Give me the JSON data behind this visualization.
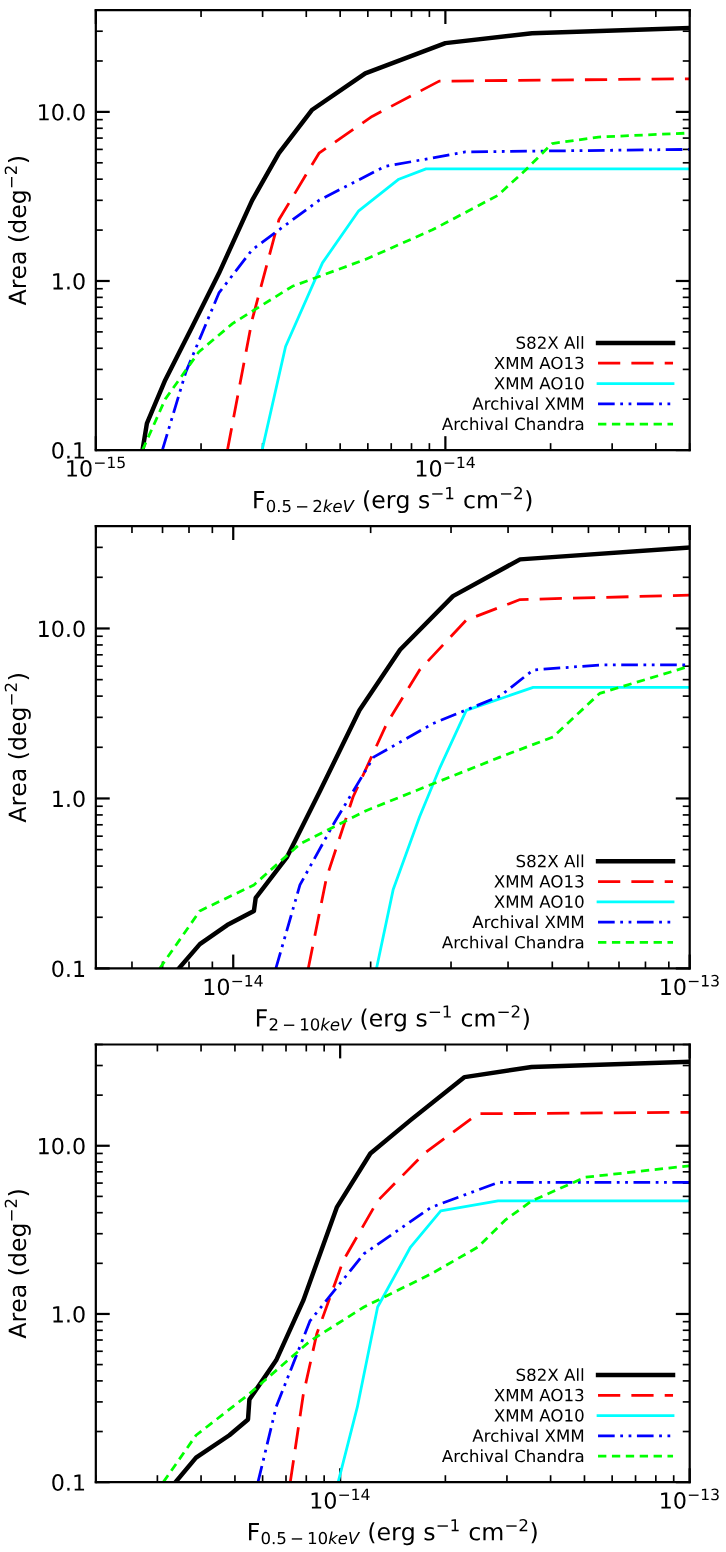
{
  "chart_data": [
    {
      "type": "line",
      "xlabel": "F$_{0.5−2keV}$ (erg s$^{−1}$ cm$^{−2}$)",
      "ylabel": "Area (deg$^{−2}$)",
      "log": "xy",
      "xlim": [
        1e-15,
        5e-14
      ],
      "ylim": [
        0.1,
        40
      ],
      "xticks": [
        {
          "value": 1e-15,
          "label": "10$^{−15}$"
        },
        {
          "value": 1e-14,
          "label": "10$^{−14}$"
        }
      ],
      "yticks": [
        {
          "value": 0.1,
          "label": "0.1"
        },
        {
          "value": 1,
          "label": "1.0"
        },
        {
          "value": 10,
          "label": "10.0"
        }
      ],
      "legend": "bottom right",
      "grid": false,
      "series": [
        {
          "name": "S82X All",
          "color": "#000000",
          "line_style": "solid",
          "x": [
            1.36e-15,
            1.4e-15,
            1.58e-15,
            1.89e-15,
            2.25e-15,
            2.8e-15,
            3.34e-15,
            4.16e-15,
            5.9e-15,
            1e-14,
            1.77e-14,
            5e-14
          ],
          "values": [
            0.1,
            0.144,
            0.26,
            0.54,
            1.11,
            3.0,
            5.7,
            10.3,
            16.9,
            25.5,
            29.2,
            31.3
          ]
        },
        {
          "name": "XMM AO13",
          "color": "#ff0000",
          "line_style": "dashed",
          "x": [
            2.38e-15,
            2.8e-15,
            3.34e-15,
            4.35e-15,
            6.17e-15,
            9.6e-15,
            5e-14
          ],
          "values": [
            0.1,
            0.59,
            2.3,
            5.7,
            9.4,
            15.2,
            15.7
          ]
        },
        {
          "name": "XMM AO10",
          "color": "#00ffff",
          "line_style": "solid",
          "x": [
            2.99e-15,
            3.49e-15,
            4.45e-15,
            5.65e-15,
            7.36e-15,
            8.8e-15,
            5e-14
          ],
          "values": [
            0.1,
            0.41,
            1.28,
            2.6,
            4.0,
            4.6,
            4.6
          ]
        },
        {
          "name": "Archival XMM",
          "color": "#0000ff",
          "line_style": "dashdot",
          "x": [
            1.55e-15,
            1.81e-15,
            2.25e-15,
            2.8e-15,
            4.35e-15,
            6.7e-15,
            1.14e-14,
            5e-14
          ],
          "values": [
            0.1,
            0.29,
            0.85,
            1.53,
            3.0,
            4.75,
            5.8,
            6.0
          ]
        },
        {
          "name": "Archival Chandra",
          "color": "#00ff00",
          "line_style": "dotted",
          "x": [
            1.36e-15,
            1.58e-15,
            1.97e-15,
            2.46e-15,
            3.65e-15,
            5.9e-15,
            9.15e-15,
            1.41e-14,
            1.69e-14,
            2.02e-14,
            2.74e-14,
            5e-14
          ],
          "values": [
            0.1,
            0.2,
            0.38,
            0.56,
            0.93,
            1.34,
            2.0,
            3.2,
            4.5,
            6.5,
            7.1,
            7.5
          ]
        }
      ]
    },
    {
      "type": "line",
      "xlabel": "F$_{2−10keV}$ (erg s$^{−1}$ cm$^{−2}$)",
      "ylabel": "Area (deg$^{−2}$)",
      "log": "xy",
      "xlim": [
        5e-15,
        1e-13
      ],
      "ylim": [
        0.1,
        40
      ],
      "xticks": [
        {
          "value": 1e-14,
          "label": "10$^{−14}$"
        },
        {
          "value": 1e-13,
          "label": "10$^{−13}$"
        }
      ],
      "yticks": [
        {
          "value": 0.1,
          "label": "0.1"
        },
        {
          "value": 1,
          "label": "1.0"
        },
        {
          "value": 10,
          "label": "10.0"
        }
      ],
      "legend": "bottom right",
      "grid": false,
      "series": [
        {
          "name": "S82X All",
          "color": "#000000",
          "line_style": "solid",
          "x": [
            7.6e-15,
            8.45e-15,
            9.7e-15,
            1.11e-14,
            1.12e-14,
            1.31e-14,
            1.55e-14,
            1.89e-14,
            2.32e-14,
            3.03e-14,
            4.25e-14,
            1e-13
          ],
          "values": [
            0.1,
            0.139,
            0.18,
            0.218,
            0.26,
            0.45,
            1.11,
            3.3,
            7.5,
            15.5,
            25.5,
            29.9
          ]
        },
        {
          "name": "XMM AO13",
          "color": "#ff0000",
          "line_style": "dashed",
          "x": [
            1.46e-14,
            1.6e-14,
            1.83e-14,
            2.17e-14,
            2.56e-14,
            3.24e-14,
            4.25e-14,
            1e-13
          ],
          "values": [
            0.1,
            0.34,
            1.02,
            2.76,
            5.7,
            11.2,
            14.8,
            15.7
          ]
        },
        {
          "name": "XMM AO10",
          "color": "#00ffff",
          "line_style": "solid",
          "x": [
            2.06e-14,
            2.24e-14,
            2.56e-14,
            2.84e-14,
            3.24e-14,
            4.54e-14,
            1e-13
          ],
          "values": [
            0.1,
            0.29,
            0.78,
            1.53,
            3.3,
            4.5,
            4.5
          ]
        },
        {
          "name": "Archival XMM",
          "color": "#0000ff",
          "line_style": "dashdot",
          "x": [
            1.24e-14,
            1.4e-14,
            1.66e-14,
            2.03e-14,
            2.74e-14,
            3.84e-14,
            4.54e-14,
            6.35e-14,
            1e-13
          ],
          "values": [
            0.1,
            0.31,
            0.71,
            1.75,
            2.76,
            4.0,
            5.7,
            6.1,
            6.1
          ]
        },
        {
          "name": "Archival Chandra",
          "color": "#00ff00",
          "line_style": "dotted",
          "x": [
            6.9e-15,
            8.45e-15,
            1.11e-14,
            1.4e-14,
            1.96e-14,
            2.74e-14,
            3.84e-14,
            5.02e-14,
            6.35e-14,
            1e-13
          ],
          "values": [
            0.1,
            0.218,
            0.31,
            0.54,
            0.85,
            1.22,
            1.75,
            2.3,
            4.15,
            6.0
          ]
        }
      ]
    },
    {
      "type": "line",
      "xlabel": "F$_{0.5−10keV}$ (erg s$^{−1}$ cm$^{−2}$)",
      "ylabel": "Area (deg$^{−2}$)",
      "log": "xy",
      "xlim": [
        2e-15,
        1e-13
      ],
      "ylim": [
        0.1,
        40
      ],
      "xticks": [
        {
          "value": 1e-14,
          "label": "10$^{−14}$"
        },
        {
          "value": 1e-13,
          "label": "10$^{−13}$"
        }
      ],
      "yticks": [
        {
          "value": 0.1,
          "label": "0.1"
        },
        {
          "value": 1,
          "label": "1.0"
        },
        {
          "value": 10,
          "label": "10.0"
        }
      ],
      "legend": "bottom right",
      "grid": false,
      "series": [
        {
          "name": "S82X All",
          "color": "#000000",
          "line_style": "solid",
          "x": [
            3.38e-15,
            3.87e-15,
            4.82e-15,
            5.45e-15,
            5.5e-15,
            6.56e-15,
            7.84e-15,
            9.78e-15,
            1.22e-14,
            1.59e-14,
            2.27e-14,
            3.53e-14,
            1e-13
          ],
          "values": [
            0.1,
            0.14,
            0.19,
            0.236,
            0.31,
            0.53,
            1.2,
            4.3,
            9.0,
            14.2,
            25.6,
            29.4,
            31.6
          ]
        },
        {
          "name": "XMM AO13",
          "color": "#ff0000",
          "line_style": "dashed",
          "x": [
            7.2e-15,
            7.84e-15,
            8.57e-15,
            1.02e-14,
            1.28e-14,
            1.74e-14,
            2.48e-14,
            1e-13
          ],
          "values": [
            0.1,
            0.33,
            0.76,
            2.07,
            4.7,
            9.0,
            15.5,
            15.8
          ]
        },
        {
          "name": "XMM AO10",
          "color": "#00ffff",
          "line_style": "solid",
          "x": [
            9.87e-15,
            1.12e-14,
            1.28e-14,
            1.59e-14,
            1.94e-14,
            2.83e-14,
            1e-13
          ],
          "values": [
            0.1,
            0.28,
            1.1,
            2.5,
            4.1,
            4.7,
            4.7
          ]
        },
        {
          "name": "Archival XMM",
          "color": "#0000ff",
          "line_style": "dashdot",
          "x": [
            5.82e-15,
            6.56e-15,
            8.2e-15,
            1.17e-14,
            1.82e-14,
            2.83e-14,
            1e-13
          ],
          "values": [
            0.1,
            0.28,
            0.91,
            2.28,
            4.3,
            6.05,
            6.05
          ]
        },
        {
          "name": "Archival Chandra",
          "color": "#00ff00",
          "line_style": "dotted",
          "x": [
            3.12e-15,
            3.87e-15,
            5.45e-15,
            8.2e-15,
            1.17e-14,
            1.82e-14,
            2.48e-14,
            2.96e-14,
            3.53e-14,
            5.03e-14,
            1e-13
          ],
          "values": [
            0.1,
            0.19,
            0.33,
            0.69,
            1.1,
            1.73,
            2.5,
            3.6,
            4.7,
            6.5,
            7.6
          ]
        }
      ]
    }
  ]
}
